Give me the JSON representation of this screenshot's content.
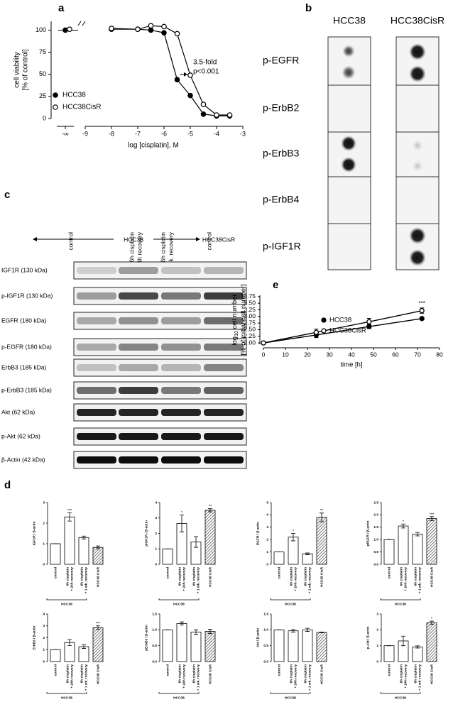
{
  "panel_labels": [
    "a",
    "b",
    "c",
    "d",
    "e"
  ],
  "chart_data": [
    {
      "type": "line",
      "ylabel": [
        "cell viability",
        "[% of control]"
      ],
      "xlabel": "log [cisplatin], M",
      "xlim": [
        -9,
        -3
      ],
      "xticks": [
        -9,
        -8,
        -7,
        -6,
        -5,
        -4,
        -3
      ],
      "break_label": "-∞",
      "ylim": [
        0,
        110
      ],
      "yticks": [
        0,
        25,
        50,
        75,
        100
      ],
      "x": [
        -8,
        -7,
        -6.5,
        -6,
        -5.5,
        -5,
        -4.5,
        -4,
        -3.5
      ],
      "series": [
        {
          "name": "HCC38",
          "color": "#000000",
          "filled": true,
          "control_value": 100,
          "values": [
            101,
            101,
            100,
            97,
            44,
            26,
            5,
            3,
            3
          ]
        },
        {
          "name": "HCC38CisR",
          "color": "#000000",
          "filled": false,
          "control_value": 101,
          "values": [
            102,
            101,
            105,
            104,
            96,
            49,
            16,
            4,
            4
          ]
        }
      ],
      "annotations": [
        "3.5-fold",
        "p<0.001"
      ]
    },
    {
      "type": "line",
      "ylabel": {
        "base": "log",
        "sub": "10",
        "rest": " cell number",
        "line2": "[% of initial cell number]"
      },
      "xlabel": "time [h]",
      "xlim": [
        0,
        80
      ],
      "xticks": [
        0,
        10,
        20,
        30,
        40,
        50,
        60,
        70,
        80
      ],
      "ylim": [
        1.95,
        3.8
      ],
      "yticks": [
        {
          "value": 2,
          "label": "2.00"
        },
        {
          "value": 2.25,
          "label": "2.25"
        },
        {
          "value": 2.5,
          "label": "2.50"
        },
        {
          "value": 2.75,
          "label": "2.75"
        },
        {
          "value": 3,
          "label": "3.00"
        },
        {
          "value": 3.25,
          "label": "3.25"
        },
        {
          "value": 3.5,
          "label": "3.50"
        },
        {
          "value": 3.75,
          "label": "3.75"
        }
      ],
      "x": [
        0,
        24,
        48,
        72
      ],
      "series": [
        {
          "name": "HCC38",
          "color": "#000000",
          "filled": true,
          "values": [
            2.0,
            2.3,
            2.62,
            2.92
          ],
          "errors": [
            0.01,
            0.1,
            0.08,
            0.03
          ]
        },
        {
          "name": "HCC38CisR",
          "color": "#000000",
          "filled": false,
          "values": [
            2.0,
            2.4,
            2.8,
            3.22
          ],
          "errors": [
            0.01,
            0.12,
            0.13,
            0.1
          ]
        }
      ],
      "annotation": {
        "text": "***",
        "x_index": 3
      }
    },
    {
      "type": "bar",
      "ylabel": "IGF1R / β-actin",
      "ylim": [
        0,
        3
      ],
      "yticks": [
        0,
        1,
        2,
        3
      ],
      "categories": [
        [
          "control"
        ],
        [
          "6h cisplatin",
          "+ 24h recovery"
        ],
        [
          "6h cisplatin",
          "+ 1 wk. recovery"
        ],
        [
          "HCC38 CisR"
        ]
      ],
      "values": [
        1,
        2.3,
        1.3,
        0.82
      ],
      "errors": [
        0,
        0.2,
        0.07,
        0.07
      ],
      "hatch": [
        false,
        false,
        false,
        true
      ],
      "group_label": "HCC38",
      "annotations": [
        {
          "index": 1,
          "text": "***"
        }
      ]
    },
    {
      "type": "bar",
      "ylabel": "pIGF1R / β-actin",
      "ylim": [
        0,
        4
      ],
      "yticks": [
        0,
        1,
        2,
        3,
        4
      ],
      "categories": [
        [
          "control"
        ],
        [
          "6h cisplatin",
          "+ 24h recovery"
        ],
        [
          "6h cisplatin",
          "+ 1 wk. recovery"
        ],
        [
          "HCC38 CisR"
        ]
      ],
      "values": [
        1,
        2.65,
        1.45,
        3.5
      ],
      "errors": [
        0,
        0.55,
        0.35,
        0.1
      ],
      "hatch": [
        false,
        false,
        false,
        true
      ],
      "group_label": "HCC38",
      "annotations": [
        {
          "index": 1,
          "text": "*"
        },
        {
          "index": 3,
          "text": "**"
        }
      ]
    },
    {
      "type": "bar",
      "ylabel": "EGFR / β-actin",
      "ylim": [
        0,
        5
      ],
      "yticks": [
        0,
        1,
        2,
        3,
        4,
        5
      ],
      "categories": [
        [
          "control"
        ],
        [
          "6h cisplatin",
          "+ 24h recovery"
        ],
        [
          "6h cisplatin",
          "+ 1 wk. recovery"
        ],
        [
          "HCC38 CisR"
        ]
      ],
      "values": [
        1,
        2.2,
        0.85,
        3.8
      ],
      "errors": [
        0,
        0.3,
        0.07,
        0.35
      ],
      "hatch": [
        false,
        false,
        false,
        true
      ],
      "group_label": "HCC38",
      "annotations": [
        {
          "index": 1,
          "text": "*"
        },
        {
          "index": 3,
          "text": "**"
        }
      ]
    },
    {
      "type": "bar",
      "ylabel": "pEGFR / β-actin",
      "ylim": [
        0,
        2.5
      ],
      "yticks": [
        {
          "value": 0,
          "label": "0.0"
        },
        {
          "value": 0.5,
          "label": "0.5"
        },
        {
          "value": 1,
          "label": "1.0"
        },
        {
          "value": 1.5,
          "label": "1.5"
        },
        {
          "value": 2,
          "label": "2.0"
        },
        {
          "value": 2.5,
          "label": "2.5"
        }
      ],
      "categories": [
        [
          "control"
        ],
        [
          "6h cisplatin",
          "+ 24h recovery"
        ],
        [
          "6h cisplatin",
          "+ 1 wk. recovery"
        ],
        [
          "HCC38 CisR"
        ]
      ],
      "values": [
        1,
        1.55,
        1.22,
        1.85
      ],
      "errors": [
        0,
        0.08,
        0.07,
        0.08
      ],
      "hatch": [
        false,
        false,
        false,
        true
      ],
      "group_label": "HCC38",
      "annotations": [
        {
          "index": 1,
          "text": "*"
        },
        {
          "index": 3,
          "text": "***"
        }
      ]
    },
    {
      "type": "bar",
      "ylabel": "ErbB3 / β-actin",
      "ylim": [
        0,
        4
      ],
      "yticks": [
        0,
        1,
        2,
        3,
        4
      ],
      "categories": [
        [
          "control"
        ],
        [
          "6h cisplatin",
          "+ 24h recovery"
        ],
        [
          "6h cisplatin",
          "+ 1 wk. recovery"
        ],
        [
          "HCC38 CisR"
        ]
      ],
      "values": [
        1,
        1.6,
        1.25,
        2.85
      ],
      "errors": [
        0,
        0.25,
        0.15,
        0.15
      ],
      "hatch": [
        false,
        false,
        false,
        true
      ],
      "group_label": "HCC38",
      "annotations": [
        {
          "index": 3,
          "text": "***"
        }
      ]
    },
    {
      "type": "bar",
      "ylabel": "pErbB3 / β-actin",
      "ylim": [
        0,
        1.5
      ],
      "yticks": [
        {
          "value": 0,
          "label": "0.0"
        },
        {
          "value": 0.5,
          "label": "0.5"
        },
        {
          "value": 1,
          "label": "1.0"
        },
        {
          "value": 1.5,
          "label": "1.5"
        }
      ],
      "categories": [
        [
          "control"
        ],
        [
          "6h cisplatin",
          "+ 24h recovery"
        ],
        [
          "6h cisplatin",
          "+ 1 wk. recovery"
        ],
        [
          "HCC38 CisR"
        ]
      ],
      "values": [
        1,
        1.2,
        0.93,
        0.95
      ],
      "errors": [
        0,
        0.05,
        0.07,
        0.07
      ],
      "hatch": [
        false,
        false,
        false,
        true
      ],
      "group_label": "HCC38",
      "annotations": []
    },
    {
      "type": "bar",
      "ylabel": "Akt / β-actin",
      "ylim": [
        0,
        1.5
      ],
      "yticks": [
        {
          "value": 0,
          "label": "0.0"
        },
        {
          "value": 0.5,
          "label": "0.5"
        },
        {
          "value": 1,
          "label": "1.0"
        },
        {
          "value": 1.5,
          "label": "1.5"
        }
      ],
      "categories": [
        [
          "control"
        ],
        [
          "6h cisplatin",
          "+ 24h recovery"
        ],
        [
          "6h cisplatin",
          "+ 1 wk. recovery"
        ],
        [
          "HCC38 CisR"
        ]
      ],
      "values": [
        1,
        0.97,
        1.0,
        0.92
      ],
      "errors": [
        0,
        0.04,
        0.05,
        0.01
      ],
      "hatch": [
        false,
        false,
        false,
        true
      ],
      "group_label": "HCC38",
      "annotations": []
    },
    {
      "type": "bar",
      "ylabel": "p-Akt / β-actin",
      "ylim": [
        0,
        3
      ],
      "yticks": [
        0,
        1,
        2,
        3
      ],
      "categories": [
        [
          "control"
        ],
        [
          "6h cisplatin",
          "+ 24h recovery"
        ],
        [
          "6h cisplatin",
          "+ 1 wk. recovery"
        ],
        [
          "HCC38 CisR"
        ]
      ],
      "values": [
        1,
        1.3,
        0.92,
        2.45
      ],
      "errors": [
        0,
        0.3,
        0.07,
        0.1
      ],
      "hatch": [
        false,
        false,
        false,
        true
      ],
      "group_label": "HCC38",
      "annotations": [
        {
          "index": 3,
          "text": "*"
        }
      ]
    }
  ],
  "dot_blot": {
    "columns": [
      "HCC38",
      "HCC38CisR"
    ],
    "rows": [
      "p-EGFR",
      "p-ErbB2",
      "p-ErbB3",
      "p-ErbB4",
      "p-IGF1R"
    ]
  },
  "western_blot": {
    "columns": [
      [
        "control"
      ],
      [
        "6h cisplatin",
        "+24h recovery"
      ],
      [
        "6h cisplatin",
        "+ 1 wk. recovery"
      ],
      [
        "control"
      ]
    ],
    "group_label": "HCC38",
    "group2_label": "HCC38CisR",
    "rows": [
      "IGF1R (130 kDa)",
      "p-IGF1R (130 kDa)",
      "EGFR (180 kDa)",
      "p-EGFR (180 kDa)",
      "ErbB3 (185 kDa)",
      "p-ErbB3 (185 kDa)",
      "Akt (62 kDa)",
      "p-Akt (62 kDa)",
      "β-Actin (42 kDa)"
    ]
  }
}
